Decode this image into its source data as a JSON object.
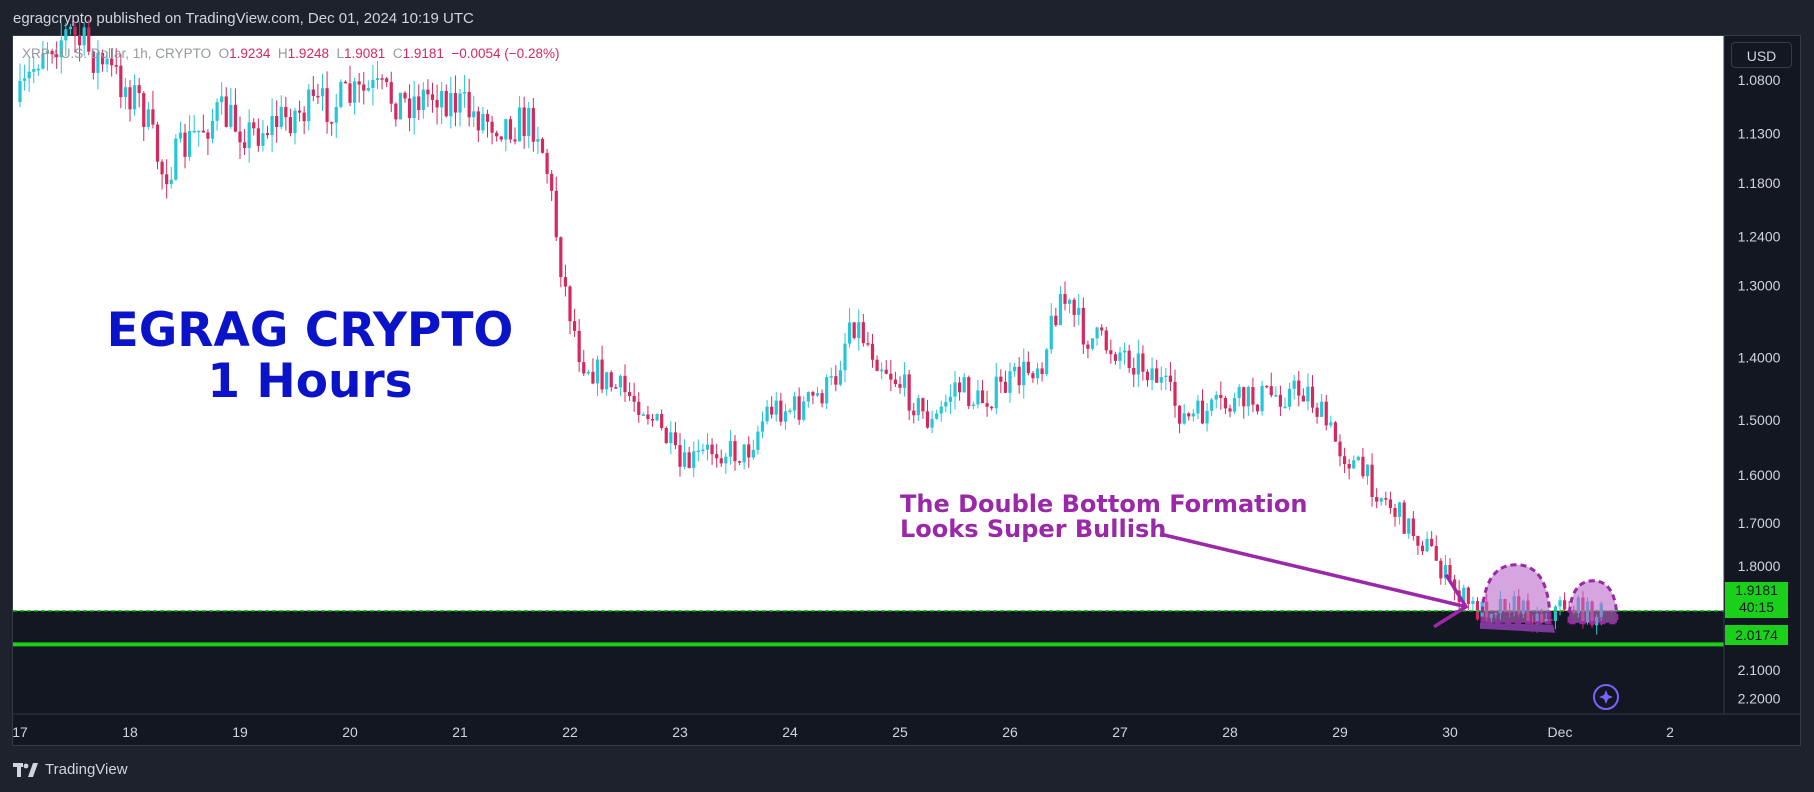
{
  "header": {
    "publisher_text": "egragcrypto published on TradingView.com, Dec 01, 2024 10:19 UTC"
  },
  "footer": {
    "logo_text": "TradingView"
  },
  "legend": {
    "symbol": "XRP / U.S. Dollar, 1h, CRYPTO",
    "open_label": "O",
    "open": "1.9234",
    "high_label": "H",
    "high": "1.9248",
    "low_label": "L",
    "low": "1.9081",
    "close_label": "C",
    "close": "1.9181",
    "change": "−0.0054 (−0.28%)"
  },
  "currency_button": "USD",
  "overlay_title": {
    "line1": "EGRAG CRYPTO",
    "line2": "1 Hours"
  },
  "annotation": {
    "line1": "The Double Bottom Formation",
    "line2": "Looks Super Bullish"
  },
  "price_tags": {
    "last_price": "1.9181",
    "countdown": "40:15",
    "line_price": "2.0174"
  },
  "colors": {
    "up": "#26c6da",
    "down": "#d5285d",
    "accent_green": "#1bd01b",
    "annotation": "#9a28a8",
    "title": "#0b13c8"
  },
  "chart_data": {
    "type": "candlestick",
    "y_axis_inverted": true,
    "y_ticks": [
      "1.0800",
      "1.1300",
      "1.1800",
      "1.2400",
      "1.3000",
      "1.4000",
      "1.5000",
      "1.6000",
      "1.7000",
      "1.8000",
      "1.9000",
      "2.0000",
      "2.1000",
      "2.2000"
    ],
    "x_ticks": [
      "17",
      "18",
      "19",
      "20",
      "21",
      "22",
      "23",
      "24",
      "25",
      "26",
      "27",
      "28",
      "29",
      "30",
      "Dec",
      "2"
    ],
    "horizontal_lines": [
      {
        "price": 1.9181,
        "style": "dashed"
      },
      {
        "price": 2.0174,
        "style": "solid"
      }
    ],
    "close_path": [
      [
        17.0,
        1.1
      ],
      [
        17.2,
        1.05
      ],
      [
        17.45,
        1.04
      ],
      [
        17.8,
        1.07
      ],
      [
        18.1,
        1.1
      ],
      [
        18.3,
        1.17
      ],
      [
        18.6,
        1.13
      ],
      [
        18.8,
        1.11
      ],
      [
        19.1,
        1.13
      ],
      [
        19.5,
        1.11
      ],
      [
        19.9,
        1.1
      ],
      [
        20.2,
        1.09
      ],
      [
        20.5,
        1.1
      ],
      [
        20.8,
        1.09
      ],
      [
        21.1,
        1.11
      ],
      [
        21.4,
        1.12
      ],
      [
        21.7,
        1.12
      ],
      [
        21.8,
        1.17
      ],
      [
        21.95,
        1.3
      ],
      [
        22.1,
        1.4
      ],
      [
        22.35,
        1.44
      ],
      [
        22.65,
        1.47
      ],
      [
        22.9,
        1.54
      ],
      [
        23.0,
        1.59
      ],
      [
        23.3,
        1.55
      ],
      [
        23.6,
        1.56
      ],
      [
        23.8,
        1.48
      ],
      [
        24.1,
        1.48
      ],
      [
        24.4,
        1.44
      ],
      [
        24.55,
        1.34
      ],
      [
        24.8,
        1.4
      ],
      [
        25.0,
        1.44
      ],
      [
        25.3,
        1.51
      ],
      [
        25.5,
        1.44
      ],
      [
        25.7,
        1.47
      ],
      [
        26.0,
        1.44
      ],
      [
        26.3,
        1.4
      ],
      [
        26.45,
        1.31
      ],
      [
        26.7,
        1.37
      ],
      [
        27.0,
        1.39
      ],
      [
        27.3,
        1.42
      ],
      [
        27.6,
        1.5
      ],
      [
        27.9,
        1.48
      ],
      [
        28.3,
        1.46
      ],
      [
        28.7,
        1.45
      ],
      [
        29.0,
        1.55
      ],
      [
        29.3,
        1.62
      ],
      [
        29.6,
        1.7
      ],
      [
        29.85,
        1.77
      ],
      [
        30.0,
        1.85
      ],
      [
        30.25,
        1.92
      ],
      [
        30.5,
        1.89
      ],
      [
        30.8,
        1.94
      ],
      [
        31.05,
        1.9
      ],
      [
        31.3,
        1.93
      ],
      [
        31.4,
        1.918
      ]
    ],
    "double_bottom_x": [
      30.6,
      31.3
    ]
  }
}
